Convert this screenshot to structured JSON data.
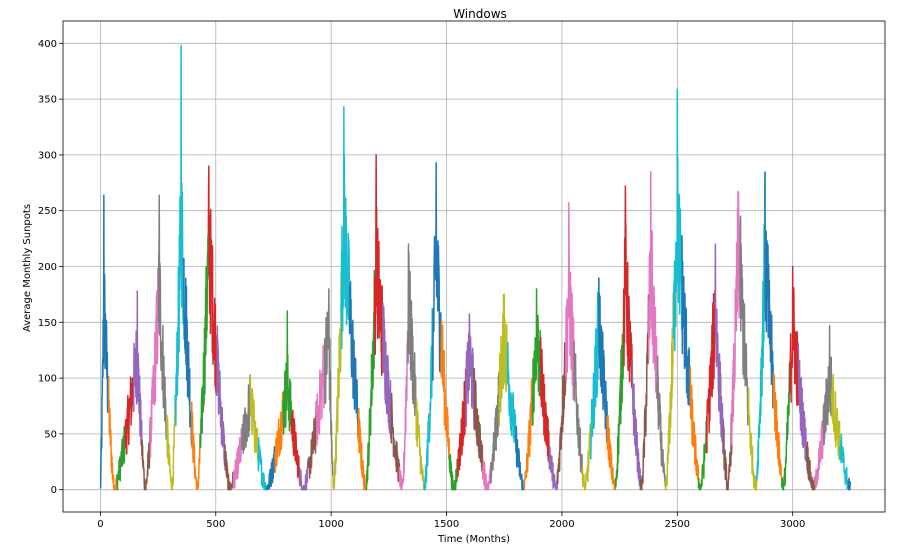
{
  "chart_data": {
    "type": "line",
    "title": "Windows",
    "xlabel": "Time (Months)",
    "ylabel": "Average Monthly Sunpots",
    "xlim": [
      -162,
      3400
    ],
    "ylim": [
      -20,
      420
    ],
    "xticks": [
      0,
      500,
      1000,
      1500,
      2000,
      2500,
      3000
    ],
    "yticks": [
      0,
      50,
      100,
      150,
      200,
      250,
      300,
      350,
      400
    ],
    "grid": true,
    "legend": "none",
    "series_colors": [
      "#1f77b4",
      "#ff7f0e",
      "#2ca02c",
      "#d62728",
      "#9467bd",
      "#8c564b",
      "#e377c2",
      "#7f7f7f",
      "#bcbd22",
      "#17becf"
    ],
    "window_size_months": 36,
    "total_months": 3250,
    "cycle_envelope": [
      {
        "start": 0,
        "peak": 15,
        "end": 60,
        "peak_value": 170,
        "max_spike": 264
      },
      {
        "start": 60,
        "peak": 160,
        "end": 195,
        "peak_value": 120,
        "max_spike": 178
      },
      {
        "start": 195,
        "peak": 255,
        "end": 310,
        "peak_value": 180,
        "max_spike": 264
      },
      {
        "start": 310,
        "peak": 350,
        "end": 420,
        "peak_value": 240,
        "max_spike": 398
      },
      {
        "start": 420,
        "peak": 470,
        "end": 560,
        "peak_value": 220,
        "max_spike": 290
      },
      {
        "start": 560,
        "peak": 650,
        "end": 720,
        "peak_value": 80,
        "max_spike": 103
      },
      {
        "start": 720,
        "peak": 810,
        "end": 880,
        "peak_value": 95,
        "max_spike": 160
      },
      {
        "start": 880,
        "peak": 990,
        "end": 1010,
        "peak_value": 140,
        "max_spike": 180
      },
      {
        "start": 1010,
        "peak": 1055,
        "end": 1150,
        "peak_value": 240,
        "max_spike": 343
      },
      {
        "start": 1150,
        "peak": 1195,
        "end": 1310,
        "peak_value": 200,
        "max_spike": 300
      },
      {
        "start": 1310,
        "peak": 1335,
        "end": 1405,
        "peak_value": 170,
        "max_spike": 220
      },
      {
        "start": 1405,
        "peak": 1455,
        "end": 1530,
        "peak_value": 210,
        "max_spike": 293
      },
      {
        "start": 1530,
        "peak": 1600,
        "end": 1680,
        "peak_value": 120,
        "max_spike": 146
      },
      {
        "start": 1680,
        "peak": 1750,
        "end": 1835,
        "peak_value": 140,
        "max_spike": 175
      },
      {
        "start": 1835,
        "peak": 1890,
        "end": 1975,
        "peak_value": 140,
        "max_spike": 180
      },
      {
        "start": 1975,
        "peak": 2030,
        "end": 2100,
        "peak_value": 180,
        "max_spike": 257
      },
      {
        "start": 2100,
        "peak": 2160,
        "end": 2230,
        "peak_value": 150,
        "max_spike": 190
      },
      {
        "start": 2230,
        "peak": 2275,
        "end": 2345,
        "peak_value": 190,
        "max_spike": 272
      },
      {
        "start": 2345,
        "peak": 2385,
        "end": 2450,
        "peak_value": 200,
        "max_spike": 285
      },
      {
        "start": 2450,
        "peak": 2500,
        "end": 2600,
        "peak_value": 240,
        "max_spike": 359
      },
      {
        "start": 2600,
        "peak": 2665,
        "end": 2720,
        "peak_value": 160,
        "max_spike": 220
      },
      {
        "start": 2720,
        "peak": 2765,
        "end": 2840,
        "peak_value": 220,
        "max_spike": 266
      },
      {
        "start": 2840,
        "peak": 2880,
        "end": 2960,
        "peak_value": 210,
        "max_spike": 285
      },
      {
        "start": 2960,
        "peak": 3000,
        "end": 3090,
        "peak_value": 150,
        "max_spike": 200
      },
      {
        "start": 3090,
        "peak": 3160,
        "end": 3250,
        "peak_value": 100,
        "max_spike": 147
      }
    ]
  }
}
